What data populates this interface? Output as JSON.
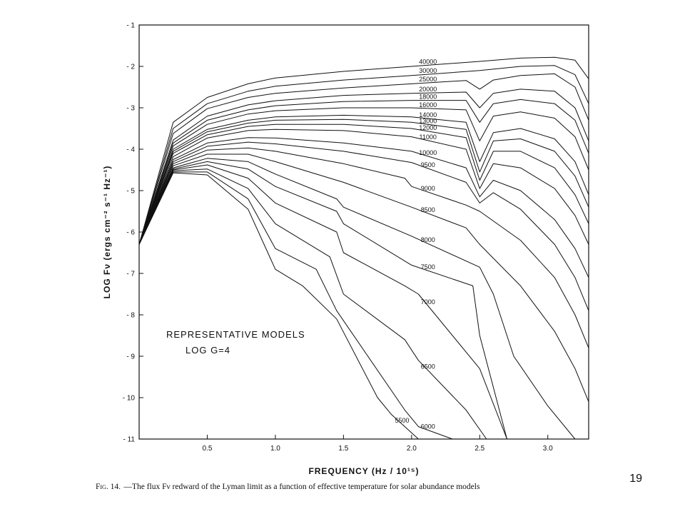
{
  "page_number": "19",
  "chart_data": {
    "type": "line",
    "ylabel": "LOG Fν (ergs cm⁻² s⁻¹ Hz⁻¹)",
    "xlabel": "FREQUENCY (Hz / 10¹⁵)",
    "xlim": [
      0,
      3.3
    ],
    "ylim": [
      -11,
      -1
    ],
    "x_ticks": [
      0.5,
      1.0,
      1.5,
      2.0,
      2.5,
      3.0
    ],
    "x_tick_labels": [
      "0.5",
      "1.0",
      "1.5",
      "2.0",
      "2.5",
      "3.0"
    ],
    "y_ticks": [
      -1,
      -2,
      -3,
      -4,
      -5,
      -6,
      -7,
      -8,
      -9,
      -10,
      -11
    ],
    "y_tick_labels": [
      "- 1",
      "- 2",
      "- 3",
      "- 4",
      "- 5",
      "- 6",
      "- 7",
      "- 8",
      "- 9",
      "- 10",
      "- 11"
    ],
    "annotation": [
      "REPRESENTATIVE MODELS",
      "LOG  G=4"
    ],
    "caption_lead": "Fig. 14.",
    "caption_text": "—The flux Fν redward of the Lyman limit as a function of effective temperature for solar abundance models",
    "series": [
      {
        "name": "40000",
        "x": [
          0.0,
          0.25,
          0.5,
          0.8,
          1.0,
          1.5,
          2.0,
          2.5,
          2.8,
          3.05,
          3.2,
          3.3
        ],
        "y": [
          -6.3,
          -3.35,
          -2.75,
          -2.42,
          -2.28,
          -2.12,
          -2.0,
          -1.88,
          -1.8,
          -1.78,
          -1.85,
          -2.3
        ]
      },
      {
        "name": "30000",
        "x": [
          0.0,
          0.25,
          0.5,
          0.8,
          1.0,
          1.5,
          2.0,
          2.5,
          2.8,
          3.05,
          3.2,
          3.3
        ],
        "y": [
          -6.3,
          -3.5,
          -2.9,
          -2.6,
          -2.48,
          -2.33,
          -2.22,
          -2.1,
          -2.0,
          -1.98,
          -2.2,
          -2.9
        ]
      },
      {
        "name": "25000",
        "x": [
          0.0,
          0.25,
          0.5,
          0.8,
          1.0,
          1.5,
          2.0,
          2.4,
          2.5,
          2.6,
          2.8,
          3.05,
          3.2,
          3.3
        ],
        "y": [
          -6.3,
          -3.62,
          -3.02,
          -2.75,
          -2.65,
          -2.52,
          -2.42,
          -2.34,
          -2.55,
          -2.33,
          -2.22,
          -2.18,
          -2.5,
          -3.3
        ]
      },
      {
        "name": "20000",
        "x": [
          0.0,
          0.25,
          0.5,
          0.8,
          1.0,
          1.5,
          2.0,
          2.4,
          2.5,
          2.6,
          2.8,
          3.05,
          3.2,
          3.3
        ],
        "y": [
          -6.3,
          -3.78,
          -3.2,
          -2.93,
          -2.83,
          -2.7,
          -2.65,
          -2.62,
          -3.0,
          -2.65,
          -2.55,
          -2.6,
          -3.0,
          -3.8
        ]
      },
      {
        "name": "18000",
        "x": [
          0.0,
          0.25,
          0.5,
          0.8,
          1.0,
          1.5,
          2.0,
          2.4,
          2.5,
          2.6,
          2.8,
          3.05,
          3.2,
          3.3
        ],
        "y": [
          -6.3,
          -3.85,
          -3.3,
          -3.05,
          -2.95,
          -2.85,
          -2.82,
          -2.82,
          -3.35,
          -2.9,
          -2.8,
          -2.9,
          -3.3,
          -4.1
        ]
      },
      {
        "name": "16000",
        "x": [
          0.0,
          0.25,
          0.5,
          0.8,
          1.0,
          1.5,
          2.0,
          2.4,
          2.5,
          2.6,
          2.8,
          3.05,
          3.2,
          3.3
        ],
        "y": [
          -6.3,
          -3.92,
          -3.4,
          -3.15,
          -3.07,
          -3.0,
          -3.0,
          -3.05,
          -3.8,
          -3.2,
          -3.1,
          -3.25,
          -3.7,
          -4.5
        ]
      },
      {
        "name": "14000",
        "x": [
          0.0,
          0.25,
          0.5,
          0.8,
          1.0,
          1.5,
          2.0,
          2.4,
          2.5,
          2.6,
          2.8,
          3.05,
          3.2,
          3.3
        ],
        "y": [
          -6.3,
          -4.0,
          -3.52,
          -3.3,
          -3.22,
          -3.18,
          -3.22,
          -3.35,
          -4.3,
          -3.6,
          -3.5,
          -3.75,
          -4.3,
          -5.1
        ]
      },
      {
        "name": "13000",
        "x": [
          0.0,
          0.25,
          0.5,
          0.8,
          1.0,
          1.5,
          2.0,
          2.4,
          2.5,
          2.6,
          2.8,
          3.05,
          3.2,
          3.3
        ],
        "y": [
          -6.3,
          -4.05,
          -3.58,
          -3.37,
          -3.3,
          -3.28,
          -3.35,
          -3.52,
          -4.55,
          -3.8,
          -3.75,
          -4.05,
          -4.65,
          -5.4
        ]
      },
      {
        "name": "12000",
        "x": [
          0.0,
          0.25,
          0.5,
          0.8,
          1.0,
          1.5,
          2.0,
          2.4,
          2.5,
          2.6,
          2.8,
          3.05,
          3.2,
          3.3
        ],
        "y": [
          -6.3,
          -4.1,
          -3.65,
          -3.45,
          -3.4,
          -3.4,
          -3.5,
          -3.72,
          -4.75,
          -4.05,
          -4.05,
          -4.45,
          -5.1,
          -5.8
        ]
      },
      {
        "name": "11000",
        "x": [
          0.0,
          0.25,
          0.5,
          0.8,
          1.0,
          1.5,
          2.0,
          2.4,
          2.5,
          2.6,
          2.8,
          3.05,
          3.2,
          3.3
        ],
        "y": [
          -6.3,
          -4.18,
          -3.73,
          -3.55,
          -3.52,
          -3.55,
          -3.7,
          -4.0,
          -4.95,
          -4.35,
          -4.45,
          -4.95,
          -5.6,
          -6.3
        ]
      },
      {
        "name": "10000",
        "x": [
          0.0,
          0.25,
          0.5,
          0.8,
          1.0,
          1.5,
          2.0,
          2.4,
          2.5,
          2.6,
          2.8,
          3.05,
          3.2,
          3.3
        ],
        "y": [
          -6.3,
          -4.25,
          -3.85,
          -3.72,
          -3.73,
          -3.85,
          -4.05,
          -4.45,
          -5.15,
          -4.75,
          -5.0,
          -5.7,
          -6.4,
          -7.1
        ]
      },
      {
        "name": "9500",
        "x": [
          0.0,
          0.25,
          0.5,
          0.8,
          1.0,
          1.5,
          2.0,
          2.4,
          2.5,
          2.6,
          2.8,
          3.05,
          3.2,
          3.3
        ],
        "y": [
          -6.3,
          -4.3,
          -3.93,
          -3.83,
          -3.87,
          -4.05,
          -4.32,
          -4.8,
          -5.3,
          -5.05,
          -5.45,
          -6.3,
          -7.1,
          -7.9
        ]
      },
      {
        "name": "9000",
        "x": [
          0.0,
          0.25,
          0.5,
          0.8,
          1.0,
          1.5,
          1.95,
          2.0,
          2.4,
          2.5,
          2.8,
          3.05,
          3.2,
          3.3
        ],
        "y": [
          -6.3,
          -4.35,
          -4.02,
          -3.97,
          -4.05,
          -4.35,
          -4.7,
          -4.9,
          -5.35,
          -5.5,
          -6.2,
          -7.1,
          -8.0,
          -8.8
        ]
      },
      {
        "name": "8500",
        "x": [
          0.0,
          0.25,
          0.5,
          0.8,
          1.0,
          1.5,
          2.0,
          2.4,
          2.5,
          2.8,
          3.05,
          3.2,
          3.3
        ],
        "y": [
          -6.3,
          -4.4,
          -4.12,
          -4.12,
          -4.3,
          -4.8,
          -5.4,
          -5.9,
          -6.3,
          -7.3,
          -8.4,
          -9.3,
          -10.1
        ]
      },
      {
        "name": "8000",
        "x": [
          0.0,
          0.25,
          0.5,
          0.8,
          1.0,
          1.45,
          1.5,
          2.0,
          2.5,
          2.6,
          2.75,
          3.0,
          3.2
        ],
        "y": [
          -6.3,
          -4.45,
          -4.22,
          -4.3,
          -4.6,
          -5.2,
          -5.4,
          -6.1,
          -6.85,
          -7.5,
          -9.0,
          -10.2,
          -11.0
        ]
      },
      {
        "name": "7500",
        "x": [
          0.0,
          0.25,
          0.5,
          0.8,
          1.0,
          1.45,
          1.5,
          2.0,
          2.45,
          2.5,
          2.7
        ],
        "y": [
          -6.3,
          -4.48,
          -4.3,
          -4.48,
          -4.9,
          -5.5,
          -5.8,
          -6.8,
          -7.3,
          -8.5,
          -11.0
        ]
      },
      {
        "name": "7000",
        "x": [
          0.0,
          0.25,
          0.5,
          0.8,
          1.0,
          1.45,
          1.5,
          1.95,
          2.05,
          2.5,
          2.7
        ],
        "y": [
          -6.3,
          -4.5,
          -4.38,
          -4.7,
          -5.3,
          -6.0,
          -6.5,
          -7.3,
          -7.5,
          -9.3,
          -11.0
        ]
      },
      {
        "name": "6500",
        "x": [
          0.0,
          0.25,
          0.5,
          0.8,
          1.0,
          1.4,
          1.5,
          1.95,
          2.05,
          2.4,
          2.55
        ],
        "y": [
          -6.3,
          -4.52,
          -4.48,
          -4.95,
          -5.8,
          -6.6,
          -7.5,
          -8.6,
          -9.1,
          -10.3,
          -11.0
        ]
      },
      {
        "name": "6000",
        "x": [
          0.0,
          0.25,
          0.5,
          0.8,
          1.0,
          1.3,
          1.45,
          1.95,
          2.05,
          2.3
        ],
        "y": [
          -6.3,
          -4.55,
          -4.55,
          -5.2,
          -6.4,
          -6.9,
          -7.9,
          -10.3,
          -10.7,
          -11.0
        ]
      },
      {
        "name": "5500",
        "x": [
          0.0,
          0.25,
          0.5,
          0.8,
          1.0,
          1.2,
          1.45,
          1.75,
          1.85,
          2.05
        ],
        "y": [
          -6.3,
          -4.57,
          -4.62,
          -5.45,
          -6.9,
          -7.3,
          -8.1,
          -10.0,
          -10.4,
          -11.0
        ]
      }
    ]
  }
}
